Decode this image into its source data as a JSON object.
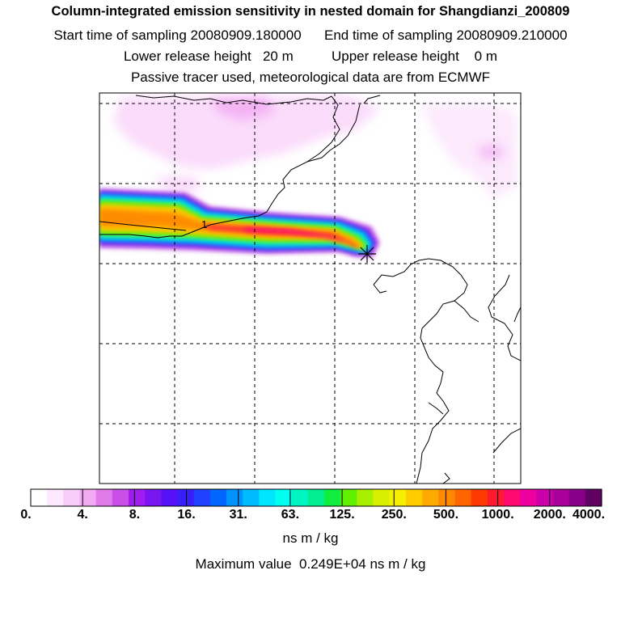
{
  "header": {
    "title": "Column-integrated emission sensitivity in nested domain for Shangdianzi_200809",
    "sampling_line": "Start time of sampling 20080909.180000      End time of sampling 20080909.210000",
    "release_line": "Lower release height   20 m          Upper release height    0 m",
    "tracer_line": "Passive tracer used, meteorological data are from ECMWF"
  },
  "map": {
    "contour_label": "1",
    "receptor_marker": "star-receptor",
    "colors": {
      "coast": "#000000",
      "grid": "#000000",
      "frame": "#000000"
    }
  },
  "colorbar": {
    "tick_labels": [
      "0.",
      "4.",
      "8.",
      "16.",
      "31.",
      "63.",
      "125.",
      "250.",
      "500.",
      "1000.",
      "2000.",
      "4000."
    ],
    "colors": [
      "#ffffff",
      "#fde8fd",
      "#f8ccf8",
      "#f2aaf2",
      "#e07ae9",
      "#c94fe6",
      "#a01cf0",
      "#7a16f0",
      "#5512f6",
      "#3a1ef8",
      "#2042ff",
      "#0066ff",
      "#0092ff",
      "#00bbff",
      "#00e6ff",
      "#00ffee",
      "#00f5c0",
      "#00ee90",
      "#10ee40",
      "#60f000",
      "#a8f000",
      "#d8f000",
      "#f5ee00",
      "#ffcc00",
      "#ffaa00",
      "#ff8800",
      "#ff6600",
      "#ff3a00",
      "#ff1a30",
      "#ff0a70",
      "#ee00a0",
      "#cc00aa",
      "#aa0099",
      "#880088",
      "#600060"
    ],
    "units": "ns m / kg",
    "max_value": "Maximum value  0.249E+04 ns m / kg"
  }
}
